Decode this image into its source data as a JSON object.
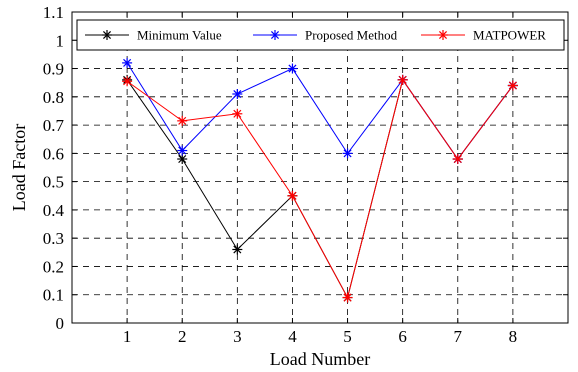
{
  "chart_data": {
    "type": "line",
    "xlabel": "Load Number",
    "ylabel": "Load Factor",
    "x": [
      1,
      2,
      3,
      4,
      5,
      6,
      7,
      8
    ],
    "xlim": [
      0,
      9
    ],
    "ylim": [
      0,
      1.1
    ],
    "xticks": [
      "1",
      "2",
      "3",
      "4",
      "5",
      "6",
      "7",
      "8"
    ],
    "yticks": [
      "0",
      "0.1",
      "0.2",
      "0.3",
      "0.4",
      "0.5",
      "0.6",
      "0.7",
      "0.8",
      "0.9",
      "1",
      "1.1"
    ],
    "grid": true,
    "legend_position": "top",
    "series": [
      {
        "name": "Minimum Value",
        "color": "#000000",
        "marker": "asterisk",
        "values": [
          0.86,
          0.58,
          0.26,
          0.45,
          0.09,
          0.86,
          0.58,
          0.84
        ]
      },
      {
        "name": "Proposed Method",
        "color": "#0000ff",
        "marker": "asterisk",
        "values": [
          0.92,
          0.61,
          0.81,
          0.9,
          0.6,
          0.86,
          0.58,
          0.84
        ]
      },
      {
        "name": "MATPOWER",
        "color": "#ff0000",
        "marker": "asterisk",
        "values": [
          0.855,
          0.715,
          0.74,
          0.45,
          0.09,
          0.86,
          0.58,
          0.84
        ]
      }
    ]
  }
}
